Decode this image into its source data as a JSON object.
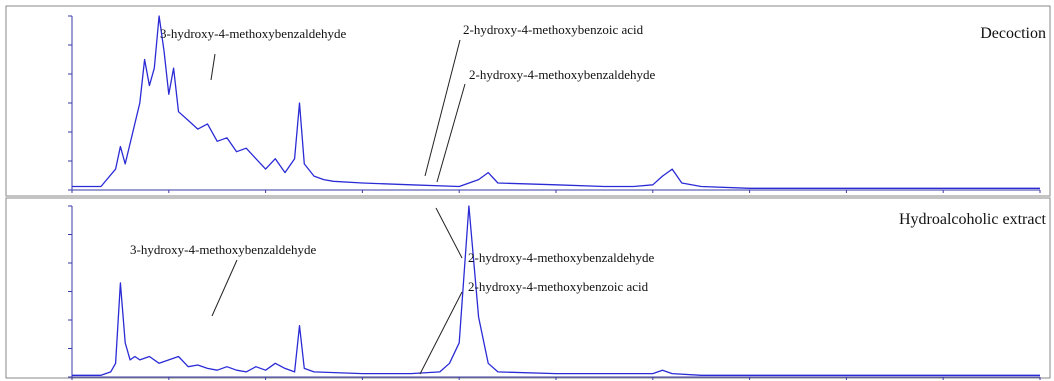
{
  "figure": {
    "panels": [
      {
        "title": "Decoction",
        "annotations": [
          {
            "label": "3-hydroxy-4-methoxybenzaldehyde"
          },
          {
            "label": "2-hydroxy-4-methoxybenzoic acid"
          },
          {
            "label": "2-hydroxy-4-methoxybenzaldehyde"
          }
        ]
      },
      {
        "title": "Hydroalcoholic extract",
        "annotations": [
          {
            "label": "3-hydroxy-4-methoxybenzaldehyde"
          },
          {
            "label": "2-hydroxy-4-methoxybenzaldehyde"
          },
          {
            "label": "2-hydroxy-4-methoxybenzoic acid"
          }
        ]
      }
    ]
  },
  "colors": {
    "trace": "#2b2bd6",
    "axis": "#3a3aa8",
    "frame": "#8a8a8a",
    "leader": "#222222"
  },
  "chart_data": [
    {
      "type": "line",
      "title": "Decoction",
      "xlabel": "",
      "ylabel": "",
      "grid": false,
      "xlim": [
        0,
        100
      ],
      "ylim": [
        0,
        100
      ],
      "series": [
        {
          "x": [
            0,
            3,
            4.5,
            5,
            5.5,
            7,
            7.5,
            8,
            8.5,
            9,
            9.5,
            10,
            10.5,
            11,
            12,
            13,
            14,
            15,
            16,
            17,
            18,
            19,
            20,
            21,
            22,
            23,
            23.5,
            24,
            25,
            26,
            27,
            30,
            35,
            40,
            42,
            43,
            44,
            50,
            55,
            58,
            60,
            61,
            62,
            63,
            65,
            70,
            80,
            90,
            100
          ],
          "y": [
            2,
            2,
            12,
            25,
            15,
            50,
            75,
            60,
            70,
            100,
            80,
            55,
            70,
            45,
            40,
            35,
            38,
            28,
            30,
            22,
            24,
            18,
            12,
            18,
            10,
            18,
            50,
            15,
            8,
            6,
            5,
            4,
            3,
            2,
            6,
            10,
            4,
            3,
            2,
            2,
            3,
            8,
            12,
            4,
            2,
            1,
            1,
            1,
            1
          ]
        }
      ]
    },
    {
      "type": "line",
      "title": "Hydroalcoholic extract",
      "xlabel": "",
      "ylabel": "",
      "grid": false,
      "xlim": [
        0,
        100
      ],
      "ylim": [
        0,
        100
      ],
      "series": [
        {
          "x": [
            0,
            3,
            4,
            4.5,
            5,
            5.5,
            6,
            6.5,
            7,
            8,
            9,
            10,
            11,
            12,
            13,
            14,
            15,
            16,
            17,
            18,
            19,
            20,
            21,
            22,
            23,
            23.5,
            24,
            25,
            30,
            35,
            38,
            39,
            40,
            41,
            42,
            43,
            44,
            50,
            55,
            58,
            60,
            61,
            62,
            65,
            70,
            80,
            100
          ],
          "y": [
            1,
            1,
            3,
            8,
            55,
            20,
            10,
            12,
            10,
            12,
            8,
            10,
            12,
            6,
            7,
            5,
            4,
            6,
            4,
            3,
            6,
            4,
            8,
            5,
            3,
            30,
            5,
            3,
            2,
            2,
            3,
            8,
            20,
            100,
            35,
            8,
            3,
            2,
            2,
            2,
            2,
            4,
            2,
            1,
            1,
            1,
            1
          ]
        }
      ]
    }
  ]
}
